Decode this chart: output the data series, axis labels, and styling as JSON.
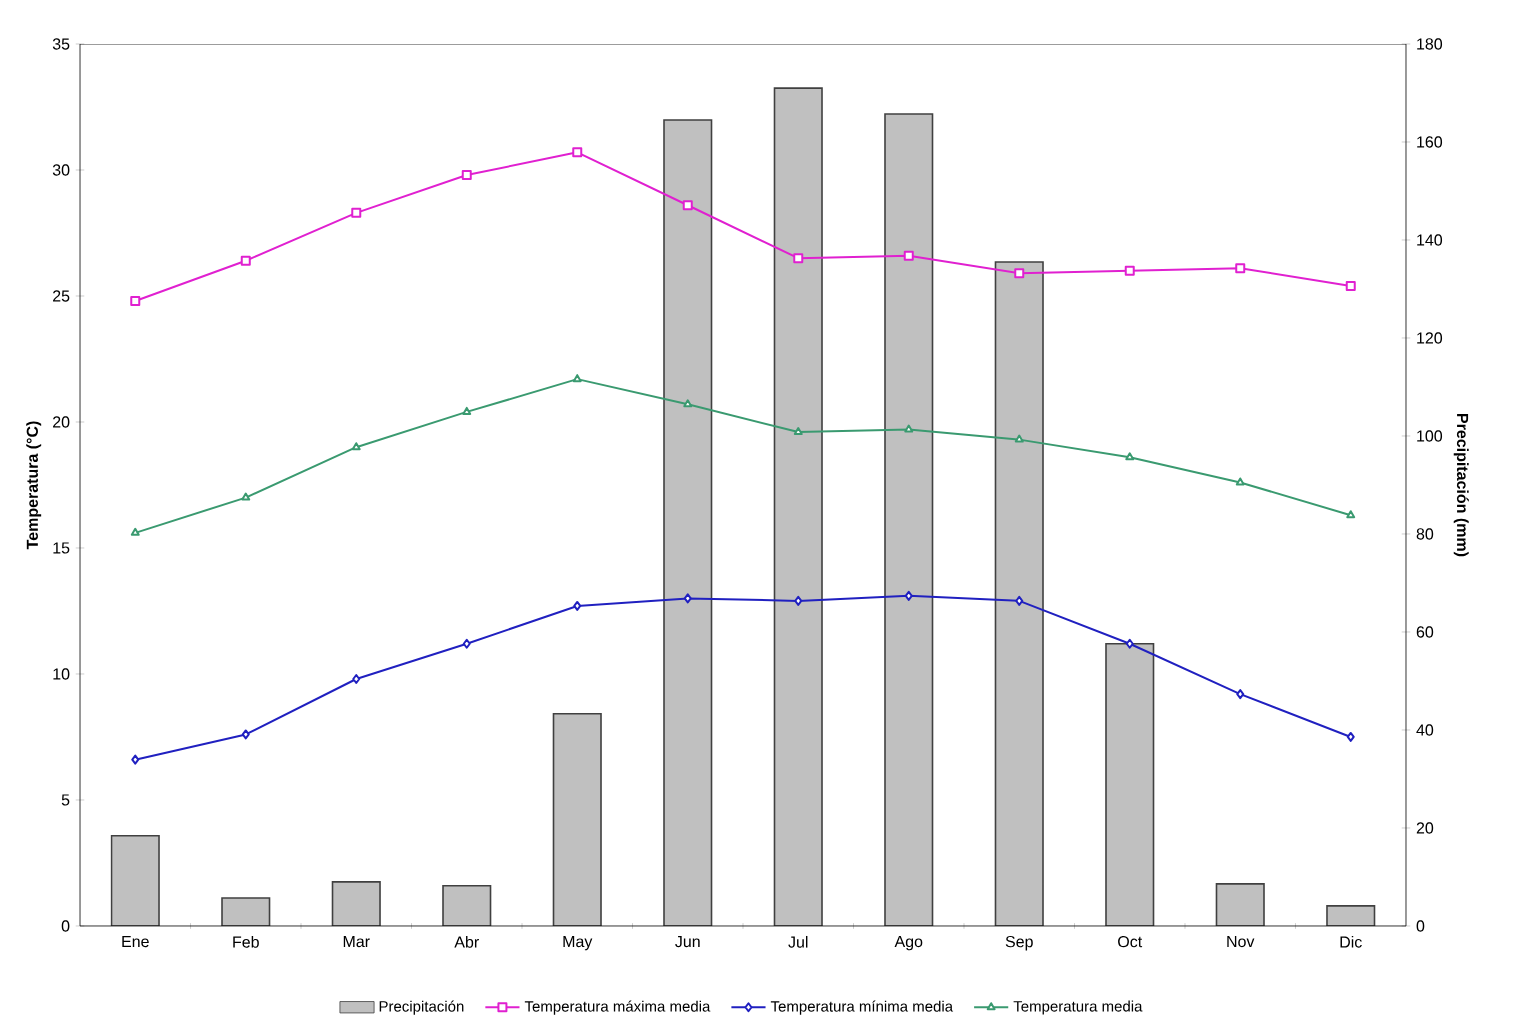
{
  "chart_data": {
    "type": "bar",
    "categories": [
      "Ene",
      "Feb",
      "Mar",
      "Abr",
      "May",
      "Jun",
      "Jul",
      "Ago",
      "Sep",
      "Oct",
      "Nov",
      "Dic"
    ],
    "series": [
      {
        "name": "Precipitación",
        "axis": "y2",
        "color": "#c0c0c0",
        "values": [
          18.4,
          5.7,
          9,
          8.2,
          43.3,
          164.5,
          171,
          165.7,
          135.5,
          57.6,
          8.6,
          4.1
        ]
      },
      {
        "name": "Temperatura máxima media",
        "type": "line",
        "marker": "square",
        "color": "#e020d0",
        "values": [
          24.8,
          26.4,
          28.3,
          29.8,
          30.7,
          28.6,
          26.5,
          26.6,
          25.9,
          26.0,
          26.1,
          25.4
        ]
      },
      {
        "name": "Temperatura mínima media",
        "type": "line",
        "marker": "diamond",
        "color": "#2020c0",
        "values": [
          6.6,
          7.6,
          9.8,
          11.2,
          12.7,
          13.0,
          12.9,
          13.1,
          12.9,
          11.2,
          9.2,
          7.5
        ]
      },
      {
        "name": "Temperatura media",
        "type": "line",
        "marker": "triangle",
        "color": "#3a9a70",
        "values": [
          15.6,
          17.0,
          19.0,
          20.4,
          21.7,
          20.7,
          19.6,
          19.7,
          19.3,
          18.6,
          17.6,
          16.3
        ]
      }
    ],
    "ylabel": "Temperatura (°C)",
    "y2label": "Precipitación (mm)",
    "ylim": [
      0,
      35
    ],
    "yticks": [
      0,
      5,
      10,
      15,
      20,
      25,
      30,
      35
    ],
    "y2lim": [
      0,
      180
    ],
    "y2ticks": [
      0,
      20,
      40,
      60,
      80,
      100,
      120,
      140,
      160,
      180
    ],
    "legend": "bottom"
  }
}
